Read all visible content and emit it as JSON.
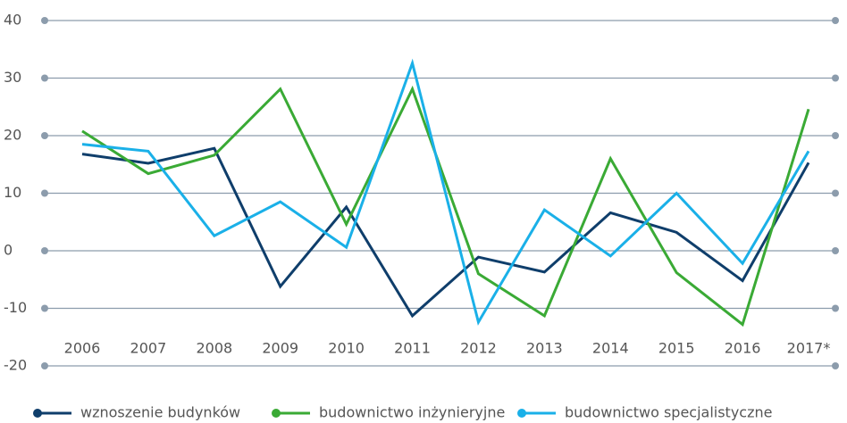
{
  "chart_data": {
    "type": "line",
    "categories": [
      "2006",
      "2007",
      "2008",
      "2009",
      "2010",
      "2011",
      "2012",
      "2013",
      "2014",
      "2015",
      "2016",
      "2017*"
    ],
    "series": [
      {
        "name": "wznoszenie budynków",
        "color": "#0f3e6b",
        "values": [
          16.8,
          15.2,
          17.8,
          -6.2,
          7.6,
          -11.3,
          -1.1,
          -3.7,
          6.6,
          3.2,
          -5.2,
          15.3
        ]
      },
      {
        "name": "budownictwo inżynieryjne",
        "color": "#3aaa35",
        "values": [
          20.8,
          13.4,
          16.6,
          28.1,
          4.6,
          28.1,
          -4.0,
          -11.3,
          16.0,
          -3.8,
          -12.8,
          24.6
        ]
      },
      {
        "name": "budownictwo specjalistyczne",
        "color": "#1ab0e8",
        "values": [
          18.5,
          17.3,
          2.6,
          8.5,
          0.6,
          32.6,
          -12.4,
          7.1,
          -0.9,
          10.0,
          -2.2,
          17.3
        ]
      }
    ],
    "ylim": [
      -20,
      40
    ],
    "yticks": [
      -20,
      -10,
      0,
      10,
      20,
      30,
      40
    ],
    "grid": true,
    "legend": "bottom"
  }
}
